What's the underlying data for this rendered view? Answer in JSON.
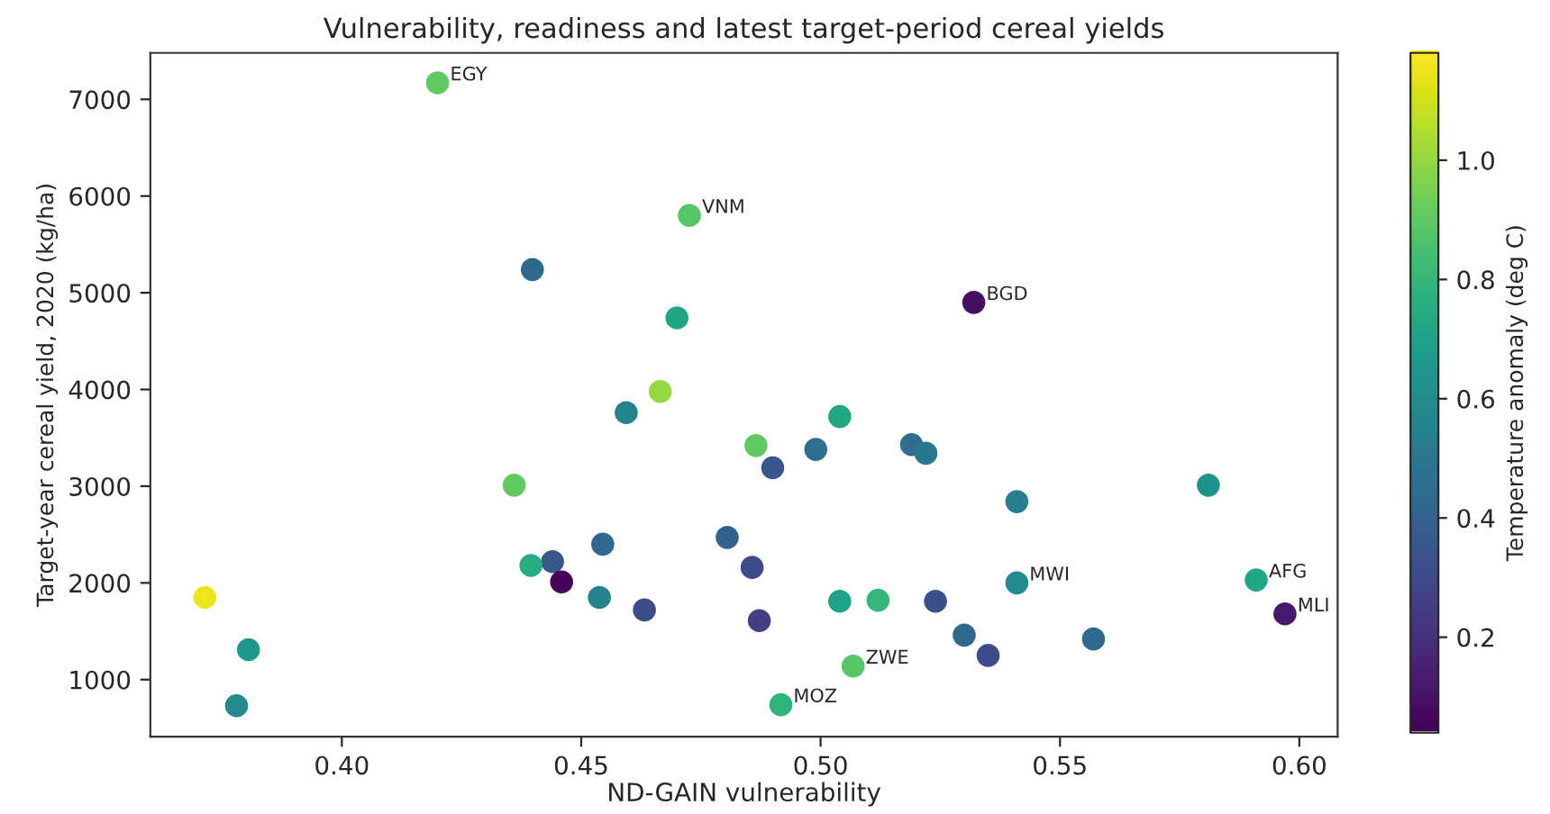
{
  "chart_data": {
    "type": "scatter",
    "title": "Vulnerability, readiness and latest target-period cereal yields",
    "xlabel": "ND-GAIN vulnerability",
    "ylabel": "Target-year cereal yield, 2020 (kg/ha)",
    "clabel": "Temperature anomaly (deg C)",
    "x": [
      0.42,
      0.4726,
      0.4398,
      0.47,
      0.4665,
      0.4594,
      0.4865,
      0.436,
      0.504,
      0.499,
      0.49,
      0.519,
      0.522,
      0.532,
      0.541,
      0.581,
      0.591,
      0.597,
      0.541,
      0.557,
      0.53,
      0.535,
      0.524,
      0.512,
      0.504,
      0.5068,
      0.4917,
      0.4857,
      0.4872,
      0.4805,
      0.4545,
      0.444,
      0.4395,
      0.4459,
      0.4538,
      0.4632,
      0.3714,
      0.3805,
      0.378
    ],
    "values": [
      7170,
      5800,
      5240,
      4740,
      3980,
      3760,
      3420,
      3010,
      3720,
      3380,
      3190,
      3430,
      3340,
      4900,
      2840,
      3010,
      2030,
      1680,
      2000,
      1420,
      1460,
      1250,
      1810,
      1820,
      1810,
      1140,
      740,
      2160,
      1610,
      2470,
      2400,
      2220,
      2180,
      2010,
      1850,
      1720,
      1850,
      1310,
      730
    ],
    "cvalues": [
      0.9,
      0.88,
      0.42,
      0.72,
      1.0,
      0.55,
      0.9,
      0.9,
      0.72,
      0.45,
      0.35,
      0.45,
      0.5,
      0.08,
      0.52,
      0.62,
      0.72,
      0.12,
      0.58,
      0.42,
      0.42,
      0.3,
      0.32,
      0.8,
      0.7,
      0.88,
      0.78,
      0.3,
      0.25,
      0.4,
      0.42,
      0.35,
      0.75,
      0.05,
      0.55,
      0.3,
      1.15,
      0.65,
      0.58
    ],
    "annotations": [
      {
        "text": "EGY",
        "x": 0.42,
        "y": 7170
      },
      {
        "text": "VNM",
        "x": 0.4726,
        "y": 5800
      },
      {
        "text": "BGD",
        "x": 0.532,
        "y": 4900
      },
      {
        "text": "AFG",
        "x": 0.591,
        "y": 2030
      },
      {
        "text": "MLI",
        "x": 0.597,
        "y": 1680
      },
      {
        "text": "MWI",
        "x": 0.541,
        "y": 2000
      },
      {
        "text": "ZWE",
        "x": 0.5068,
        "y": 1140
      },
      {
        "text": "MOZ",
        "x": 0.4917,
        "y": 740
      }
    ],
    "xlim": [
      0.36,
      0.608
    ],
    "ylim": [
      410,
      7480
    ],
    "xticks": [
      {
        "value": 0.4,
        "label": "0.40"
      },
      {
        "value": 0.45,
        "label": "0.45"
      },
      {
        "value": 0.5,
        "label": "0.50"
      },
      {
        "value": 0.55,
        "label": "0.55"
      },
      {
        "value": 0.6,
        "label": "0.60"
      }
    ],
    "yticks": [
      1000,
      2000,
      3000,
      4000,
      5000,
      6000,
      7000
    ],
    "clim": [
      0.04,
      1.18
    ],
    "cticks": [
      0.2,
      0.4,
      0.6,
      0.8,
      {
        "value": 1,
        "label": "1.0"
      }
    ],
    "marker": "circle",
    "grid": false
  }
}
